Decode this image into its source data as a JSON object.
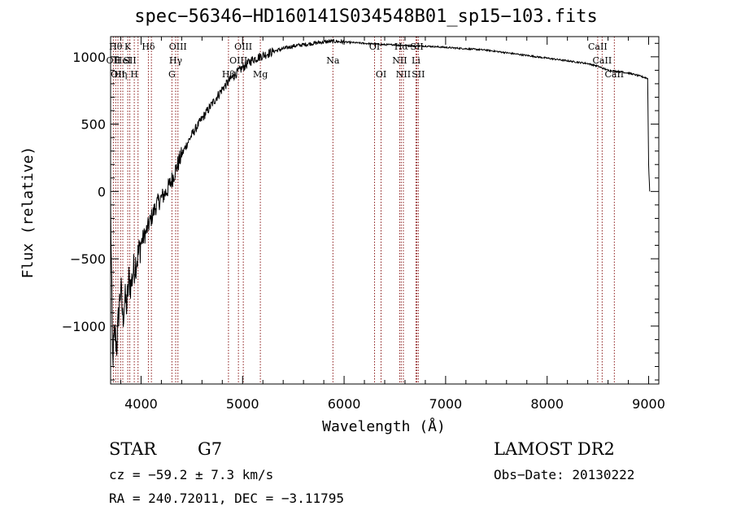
{
  "chart_data": {
    "type": "line",
    "title": "spec−56346−HD160141S034548B01_sp15−103.fits",
    "xlabel": "Wavelength (Å)",
    "ylabel": "Flux (relative)",
    "xlim": [
      3700,
      9100
    ],
    "ylim": [
      -1430,
      1150
    ],
    "x_ticks": [
      4000,
      5000,
      6000,
      7000,
      8000,
      9000
    ],
    "y_ticks": [
      -1000,
      -500,
      0,
      500,
      1000
    ],
    "x_tick_labels": [
      "4000",
      "5000",
      "6000",
      "7000",
      "8000",
      "9000"
    ],
    "y_tick_labels": [
      "−1000",
      "−500",
      "0",
      "500",
      "1000"
    ],
    "series": [
      {
        "color": "#000000",
        "x": [
          3700,
          3720,
          3740,
          3760,
          3780,
          3800,
          3820,
          3840,
          3860,
          3880,
          3900,
          3920,
          3950,
          3980,
          4000,
          4050,
          4100,
          4150,
          4200,
          4250,
          4300,
          4350,
          4400,
          4450,
          4500,
          4600,
          4700,
          4800,
          4900,
          5000,
          5100,
          5200,
          5300,
          5400,
          5500,
          5600,
          5700,
          5800,
          5900,
          6000,
          6100,
          6200,
          6300,
          6400,
          6500,
          6600,
          6700,
          6800,
          7000,
          7200,
          7400,
          7600,
          7800,
          8000,
          8200,
          8400,
          8500,
          8600,
          8700,
          8800,
          8900,
          8990,
          9000,
          9010
        ],
        "values": [
          -100,
          -1250,
          -1050,
          -1150,
          -900,
          -700,
          -950,
          -800,
          -850,
          -650,
          -700,
          -600,
          -520,
          -450,
          -380,
          -300,
          -200,
          -100,
          -50,
          0,
          80,
          180,
          270,
          350,
          420,
          540,
          650,
          760,
          850,
          920,
          980,
          1010,
          1040,
          1060,
          1080,
          1090,
          1100,
          1110,
          1115,
          1110,
          1105,
          1100,
          1095,
          1090,
          1090,
          1085,
          1080,
          1080,
          1070,
          1060,
          1050,
          1030,
          1010,
          990,
          970,
          950,
          930,
          900,
          890,
          880,
          860,
          840,
          200,
          0
        ]
      }
    ],
    "line_markers": [
      {
        "wl": 3727,
        "labels": [
          {
            "text": "OII",
            "row": 2
          }
        ]
      },
      {
        "wl": 3750,
        "labels": [
          {
            "text": "Hθ",
            "row": 1
          }
        ]
      },
      {
        "wl": 3772,
        "labels": [
          {
            "text": "OII",
            "row": 3
          }
        ]
      },
      {
        "wl": 3798,
        "labels": [
          {
            "text": "Hη",
            "row": 3
          }
        ]
      },
      {
        "wl": 3820,
        "labels": [
          {
            "text": "HeI",
            "row": 2
          }
        ]
      },
      {
        "wl": 3869,
        "labels": [
          {
            "text": "K",
            "row": 1
          }
        ]
      },
      {
        "wl": 3889,
        "labels": [
          {
            "text": "SII",
            "row": 2
          }
        ]
      },
      {
        "wl": 3933,
        "labels": [
          {
            "text": "H",
            "row": 3
          }
        ]
      },
      {
        "wl": 3970,
        "labels": []
      },
      {
        "wl": 4072,
        "labels": [
          {
            "text": "Hδ",
            "row": 1
          }
        ]
      },
      {
        "wl": 4102,
        "labels": []
      },
      {
        "wl": 4304,
        "labels": [
          {
            "text": "G",
            "row": 3
          }
        ]
      },
      {
        "wl": 4341,
        "labels": [
          {
            "text": "Hγ",
            "row": 2
          }
        ]
      },
      {
        "wl": 4363,
        "labels": [
          {
            "text": "OIII",
            "row": 1
          }
        ]
      },
      {
        "wl": 4861,
        "labels": [
          {
            "text": "Hβ",
            "row": 3
          }
        ]
      },
      {
        "wl": 4959,
        "labels": [
          {
            "text": "OIII",
            "row": 2
          }
        ]
      },
      {
        "wl": 5007,
        "labels": [
          {
            "text": "OIII",
            "row": 1
          }
        ]
      },
      {
        "wl": 5175,
        "labels": [
          {
            "text": "Mg",
            "row": 3
          }
        ]
      },
      {
        "wl": 5890,
        "labels": [
          {
            "text": "Na",
            "row": 2
          }
        ]
      },
      {
        "wl": 6300,
        "labels": [
          {
            "text": "OI",
            "row": 1
          }
        ]
      },
      {
        "wl": 6364,
        "labels": [
          {
            "text": "OI",
            "row": 3
          }
        ]
      },
      {
        "wl": 6548,
        "labels": [
          {
            "text": "NII",
            "row": 2
          }
        ]
      },
      {
        "wl": 6563,
        "labels": [
          {
            "text": "Hα",
            "row": 1
          }
        ]
      },
      {
        "wl": 6584,
        "labels": [
          {
            "text": "NII",
            "row": 3
          }
        ]
      },
      {
        "wl": 6708,
        "labels": [
          {
            "text": "Li",
            "row": 2
          }
        ]
      },
      {
        "wl": 6717,
        "labels": [
          {
            "text": "SII",
            "row": 1
          }
        ]
      },
      {
        "wl": 6731,
        "labels": [
          {
            "text": "SII",
            "row": 3
          }
        ]
      },
      {
        "wl": 8498,
        "labels": [
          {
            "text": "CaII",
            "row": 1
          }
        ]
      },
      {
        "wl": 8542,
        "labels": [
          {
            "text": "CaII",
            "row": 2
          }
        ]
      },
      {
        "wl": 8662,
        "labels": [
          {
            "text": "CaII",
            "row": 3
          }
        ]
      }
    ],
    "line_marker_color": "#8b1a1a",
    "grid": false
  },
  "footer": {
    "object_class": "STAR",
    "subclass": "G7",
    "survey": "LAMOST DR2",
    "redshift": "cz = −59.2 ± 7.3 km/s",
    "obs_date": "Obs−Date: 20130222",
    "coords": "RA = 240.72011, DEC =  −3.11795"
  }
}
